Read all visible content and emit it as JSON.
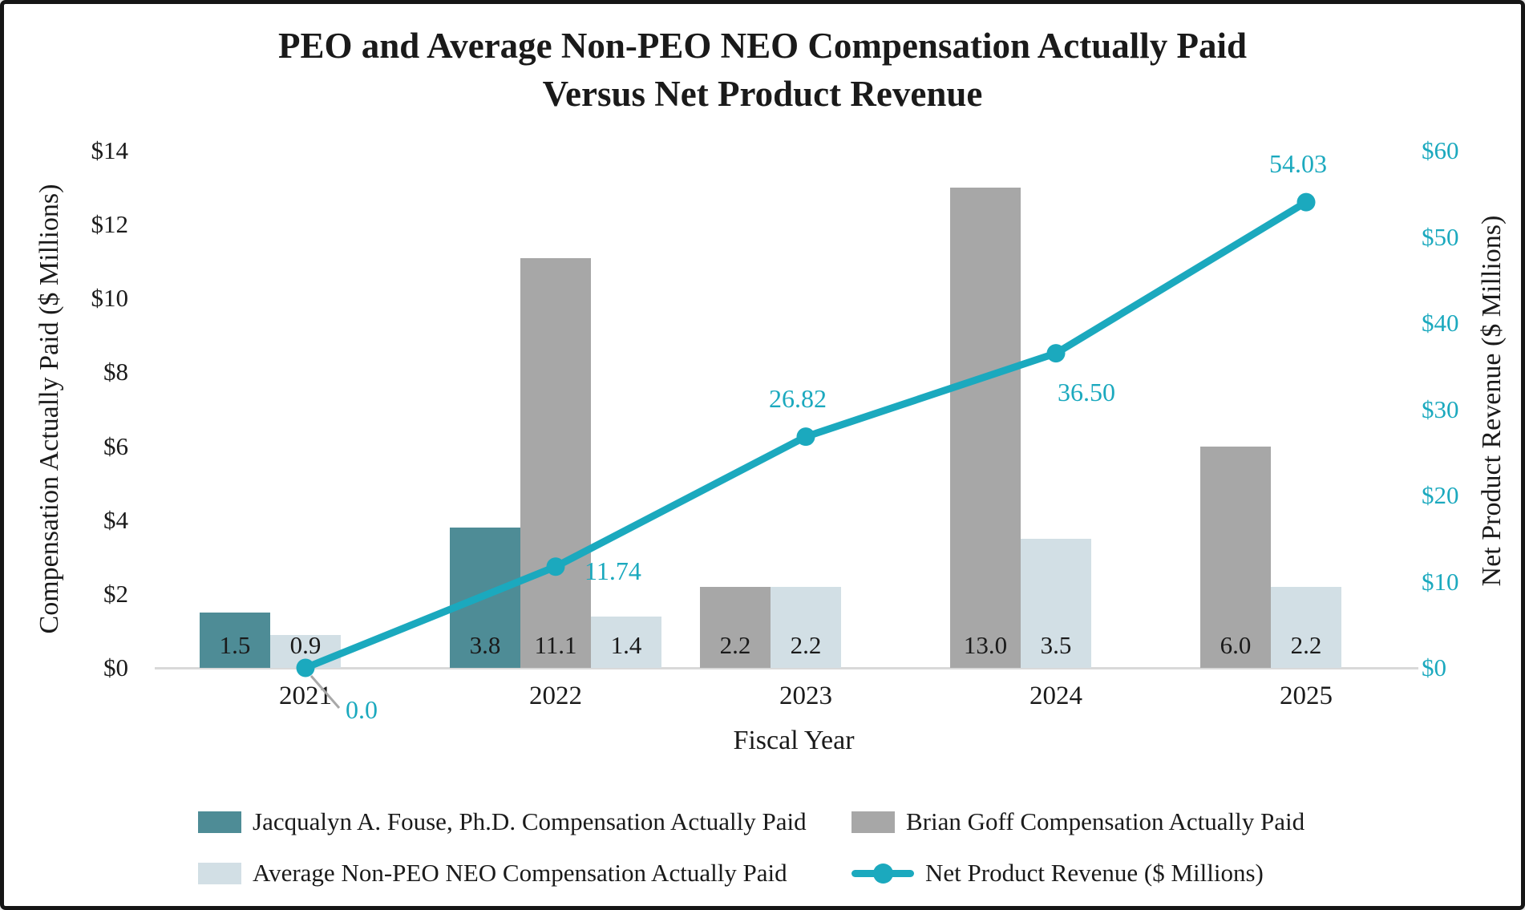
{
  "chart_data": {
    "type": "combo-bar-line",
    "title": "PEO and Average Non-PEO NEO Compensation Actually Paid Versus Net Product Revenue",
    "title_lines": [
      "PEO and Average Non-PEO NEO Compensation Actually Paid",
      "Versus Net Product Revenue"
    ],
    "categories": [
      "2021",
      "2022",
      "2023",
      "2024",
      "2025"
    ],
    "xlabel": "Fiscal Year",
    "left_axis": {
      "label": "Compensation Actually Paid ($ Millions)",
      "min": 0,
      "max": 14,
      "step": 2,
      "ticks": [
        "$0",
        "$2",
        "$4",
        "$6",
        "$8",
        "$10",
        "$12",
        "$14"
      ],
      "color": "#1a1a1a"
    },
    "right_axis": {
      "label": "Net Product Revenue ($ Millions)",
      "min": 0,
      "max": 60,
      "step": 10,
      "ticks": [
        "$0",
        "$10",
        "$20",
        "$30",
        "$40",
        "$50",
        "$60"
      ],
      "color": "#1ba9be"
    },
    "bar_series": [
      {
        "name": "Jacqualyn A. Fouse, Ph.D. Compensation Actually Paid",
        "color": "#4e8c96",
        "values": [
          1.5,
          3.8,
          null,
          null,
          null
        ],
        "labels": [
          "1.5",
          "3.8",
          null,
          null,
          null
        ]
      },
      {
        "name": "Brian Goff Compensation Actually Paid",
        "color": "#a7a7a7",
        "values": [
          null,
          11.1,
          2.2,
          13.0,
          6.0
        ],
        "labels": [
          null,
          "11.1",
          "2.2",
          "13.0",
          "6.0"
        ]
      },
      {
        "name": "Average Non-PEO NEO Compensation Actually Paid",
        "color": "#d2dfe5",
        "values": [
          0.9,
          1.4,
          2.2,
          3.5,
          2.2
        ],
        "labels": [
          "0.9",
          "1.4",
          "2.2",
          "3.5",
          "2.2"
        ]
      }
    ],
    "line_series": {
      "name": "Net Product Revenue ($ Millions)",
      "color": "#1ba9be",
      "values": [
        0.0,
        11.74,
        26.82,
        36.5,
        54.03
      ],
      "labels": [
        "0.0",
        "11.74",
        "26.82",
        "36.50",
        "54.03"
      ],
      "label_placements": [
        "leader-below-right",
        "right",
        "above",
        "below-right",
        "above"
      ]
    },
    "grid": false,
    "legend_position": "bottom",
    "plot_colors": {
      "baseline": "#d9d9d9",
      "leader_line": "#a8a8a8",
      "text": "#1a1a1a"
    }
  }
}
